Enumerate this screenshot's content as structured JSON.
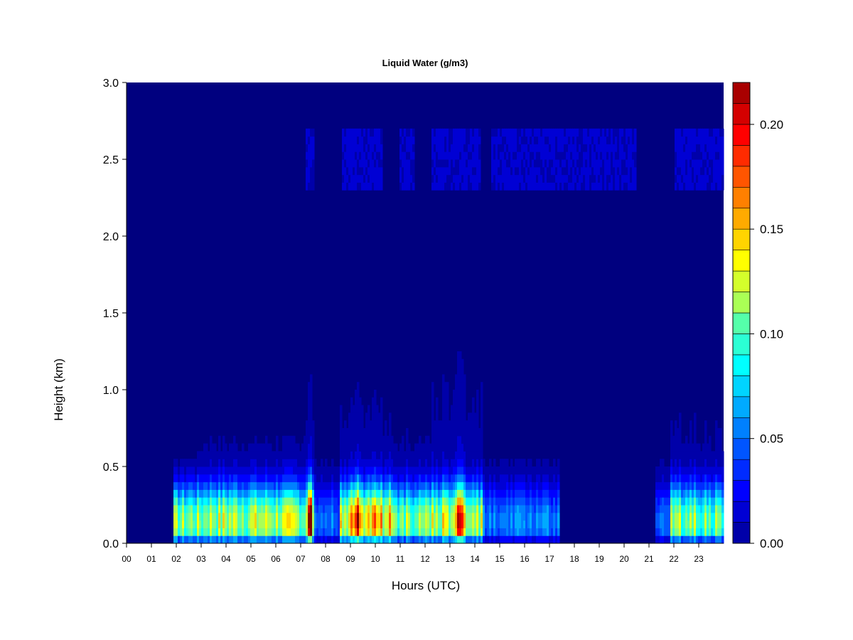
{
  "chart_data": {
    "type": "heatmap",
    "title": "Liquid Water (g/m3)",
    "xlabel": "Hours (UTC)",
    "ylabel": "Height (km)",
    "x_ticks": [
      "00",
      "01",
      "02",
      "03",
      "04",
      "05",
      "06",
      "07",
      "08",
      "09",
      "10",
      "11",
      "12",
      "13",
      "14",
      "15",
      "16",
      "17",
      "18",
      "19",
      "20",
      "21",
      "22",
      "23"
    ],
    "xlim": [
      0,
      24
    ],
    "ylim": [
      0,
      3.0
    ],
    "y_ticks": [
      "0.0",
      "0.5",
      "1.0",
      "1.5",
      "2.0",
      "2.5",
      "3.0"
    ],
    "y_tick_values": [
      0,
      0.5,
      1.0,
      1.5,
      2.0,
      2.5,
      3.0
    ],
    "colorbar": {
      "range": [
        0,
        0.22
      ],
      "ticks": [
        "0.00",
        "0.05",
        "0.10",
        "0.15",
        "0.20"
      ],
      "tick_values": [
        0,
        0.05,
        0.1,
        0.15,
        0.2
      ],
      "levels": 22,
      "colors": [
        "#00007f",
        "#0000a9",
        "#0000d4",
        "#0000ff",
        "#002bff",
        "#0055ff",
        "#0080ff",
        "#00aaff",
        "#00d4ff",
        "#00ffff",
        "#2bffd4",
        "#55ffaa",
        "#80ff80",
        "#aaff55",
        "#d4ff2b",
        "#ffff00",
        "#ffd400",
        "#ffaa00",
        "#ff8000",
        "#ff5500",
        "#ff2b00",
        "#ff0000",
        "#d40000",
        "#a90000",
        "#7f0000"
      ]
    },
    "grid": false,
    "features": {
      "cloud_base_peak_height_km": 0.15,
      "low_cloud_periods_hours": [
        [
          1.9,
          14.3
        ],
        [
          14.3,
          17.4
        ],
        [
          21.3,
          24.0
        ]
      ],
      "upper_layer_height_km": 2.5,
      "upper_layer_periods_hours": [
        [
          7.2,
          7.5
        ],
        [
          8.7,
          10.3
        ],
        [
          11.0,
          11.6
        ],
        [
          12.3,
          14.2
        ],
        [
          14.7,
          18.8
        ],
        [
          18.8,
          20.5
        ],
        [
          22.0,
          24.0
        ]
      ],
      "maxima": [
        {
          "hour": 7.35,
          "height_km": 0.15,
          "value": 0.21
        },
        {
          "hour": 9.3,
          "height_km": 0.15,
          "value": 0.19
        },
        {
          "hour": 9.9,
          "height_km": 0.15,
          "value": 0.18
        },
        {
          "hour": 13.4,
          "height_km": 0.15,
          "value": 0.2
        }
      ]
    }
  }
}
